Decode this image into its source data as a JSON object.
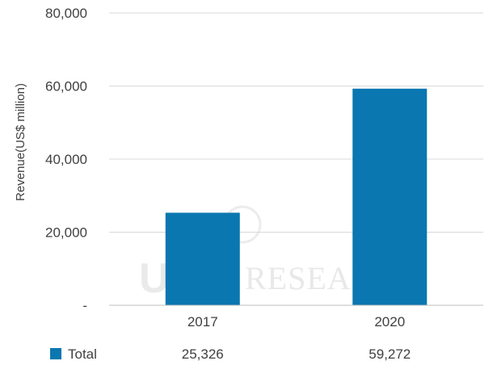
{
  "chart_data": {
    "type": "bar",
    "categories": [
      "2017",
      "2020"
    ],
    "series": [
      {
        "name": "Total",
        "values": [
          25326,
          59272
        ],
        "color": "#0a77b0"
      }
    ],
    "ylabel": "Revenue(US$ million)",
    "ylim": [
      0,
      80000
    ],
    "yticks": [
      0,
      20000,
      40000,
      60000,
      80000
    ],
    "ytick_labels": [
      "-",
      "20,000",
      "40,000",
      "60,000",
      "80,000"
    ],
    "grid": true,
    "data_table": {
      "row_label": "Total",
      "values": [
        "25,326",
        "59,272"
      ]
    }
  },
  "watermark": {
    "brand": "RESEARCH",
    "logo": "UBi"
  },
  "colors": {
    "bar": "#0a77b0",
    "grid": "#d9d9d9",
    "axis": "#bfbfbf",
    "text": "#404040"
  }
}
